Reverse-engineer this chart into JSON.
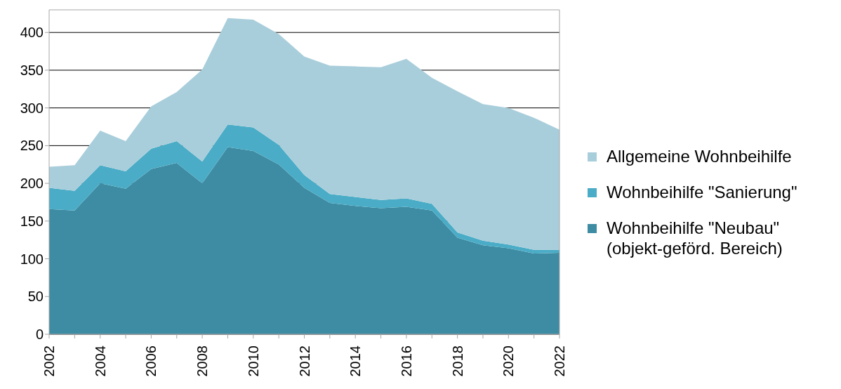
{
  "chart_data": {
    "type": "area",
    "stacked": true,
    "x": [
      2002,
      2003,
      2004,
      2005,
      2006,
      2007,
      2008,
      2009,
      2010,
      2011,
      2012,
      2013,
      2014,
      2015,
      2016,
      2017,
      2018,
      2019,
      2020,
      2021,
      2022
    ],
    "series": [
      {
        "name": "Wohnbeihilfe \"Neubau\" (objekt-geförd. Bereich)",
        "color": "#3d8ca3",
        "values": [
          166,
          164,
          200,
          193,
          219,
          227,
          200,
          248,
          243,
          225,
          194,
          174,
          170,
          167,
          169,
          164,
          128,
          118,
          114,
          107,
          108
        ]
      },
      {
        "name": "Wohnbeihilfe \"Sanierung\"",
        "color": "#4aacc6",
        "values": [
          28,
          26,
          24,
          23,
          27,
          29,
          29,
          30,
          31,
          26,
          17,
          12,
          12,
          11,
          11,
          9,
          7,
          6,
          5,
          5,
          4
        ]
      },
      {
        "name": "Allgemeine Wohnbeihilfe",
        "color": "#a9cedb",
        "values": [
          28,
          34,
          46,
          40,
          56,
          65,
          122,
          141,
          143,
          147,
          157,
          170,
          173,
          176,
          185,
          167,
          187,
          181,
          181,
          175,
          159
        ]
      }
    ],
    "xlim": [
      2002,
      2022
    ],
    "xticks": [
      2002,
      {
        "value": 2003,
        "label": null
      },
      2004,
      {
        "value": 2005,
        "label": null
      },
      2006,
      {
        "value": 2007,
        "label": null
      },
      2008,
      {
        "value": 2009,
        "label": null
      },
      2010,
      {
        "value": 2011,
        "label": null
      },
      2012,
      {
        "value": 2013,
        "label": null
      },
      2014,
      {
        "value": 2015,
        "label": null
      },
      2016,
      {
        "value": 2017,
        "label": null
      },
      2018,
      {
        "value": 2019,
        "label": null
      },
      2020,
      {
        "value": 2021,
        "label": null
      },
      2022
    ],
    "ylim": [
      0,
      430
    ],
    "yticks": [
      0,
      50,
      100,
      150,
      200,
      250,
      300,
      350,
      400
    ],
    "grid": "y",
    "legend": "right"
  }
}
